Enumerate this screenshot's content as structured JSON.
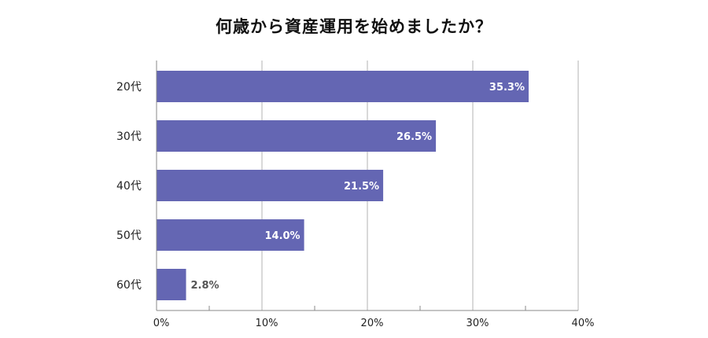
{
  "chart_data": {
    "type": "bar",
    "orientation": "horizontal",
    "title": "何歳から資産運用を始めましたか？",
    "categories": [
      "20代",
      "30代",
      "40代",
      "50代",
      "60代"
    ],
    "values": [
      35.3,
      26.5,
      21.5,
      14.0,
      2.8
    ],
    "value_labels": [
      "35.3%",
      "26.5%",
      "21.5%",
      "14.0%",
      "2.8%"
    ],
    "xlim": [
      0,
      40
    ],
    "xticks": [
      0,
      10,
      20,
      30,
      40
    ],
    "xtick_labels": [
      "0%",
      "10%",
      "20%",
      "30%",
      "40%"
    ],
    "xlabel": "",
    "ylabel": "",
    "grid": true,
    "colors": {
      "bar": "#6466b3",
      "grid": "#b3b3b3",
      "label_inside": "#ffffff",
      "label_outside": "#555555"
    }
  }
}
